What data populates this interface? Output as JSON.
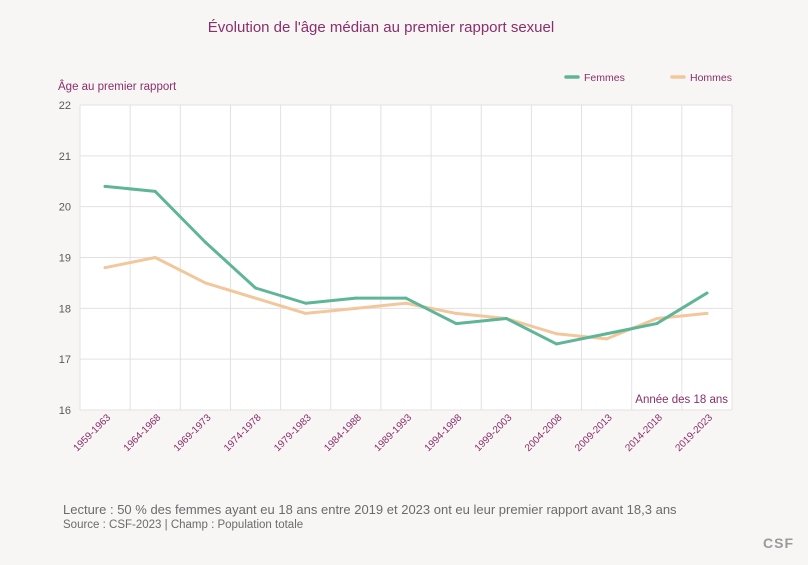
{
  "title": "Évolution de l'âge médian au premier rapport sexuel",
  "footnote": "Lecture : 50 % des femmes ayant eu 18 ans entre 2019 et 2023 ont eu leur premier rapport  avant 18,3 ans",
  "source": "Source : CSF-2023  |  Champ : Population totale",
  "logo": "CSF",
  "colors": {
    "femmes": "#5fb597",
    "hommes": "#f2c79c"
  },
  "chart_data": {
    "type": "line",
    "title": "Évolution de l'âge médian au premier rapport sexuel",
    "ylabel": "Âge au premier rapport",
    "xlabel": "Année des 18 ans",
    "ylim": [
      16,
      22
    ],
    "yticks": [
      16,
      17,
      18,
      19,
      20,
      21,
      22
    ],
    "grid": true,
    "legend": "top-right",
    "categories": [
      "1959-1963",
      "1964-1968",
      "1969-1973",
      "1974-1978",
      "1979-1983",
      "1984-1988",
      "1989-1993",
      "1994-1998",
      "1999-2003",
      "2004-2008",
      "2009-2013",
      "2014-2018",
      "2019-2023"
    ],
    "series": [
      {
        "name": "Femmes",
        "color": "#5fb597",
        "values": [
          20.4,
          20.3,
          19.3,
          18.4,
          18.1,
          18.2,
          18.2,
          17.7,
          17.8,
          17.3,
          17.5,
          17.7,
          18.3
        ]
      },
      {
        "name": "Hommes",
        "color": "#f2c79c",
        "values": [
          18.8,
          19.0,
          18.5,
          18.2,
          17.9,
          18.0,
          18.1,
          17.9,
          17.8,
          17.5,
          17.4,
          17.8,
          17.9
        ]
      }
    ]
  }
}
